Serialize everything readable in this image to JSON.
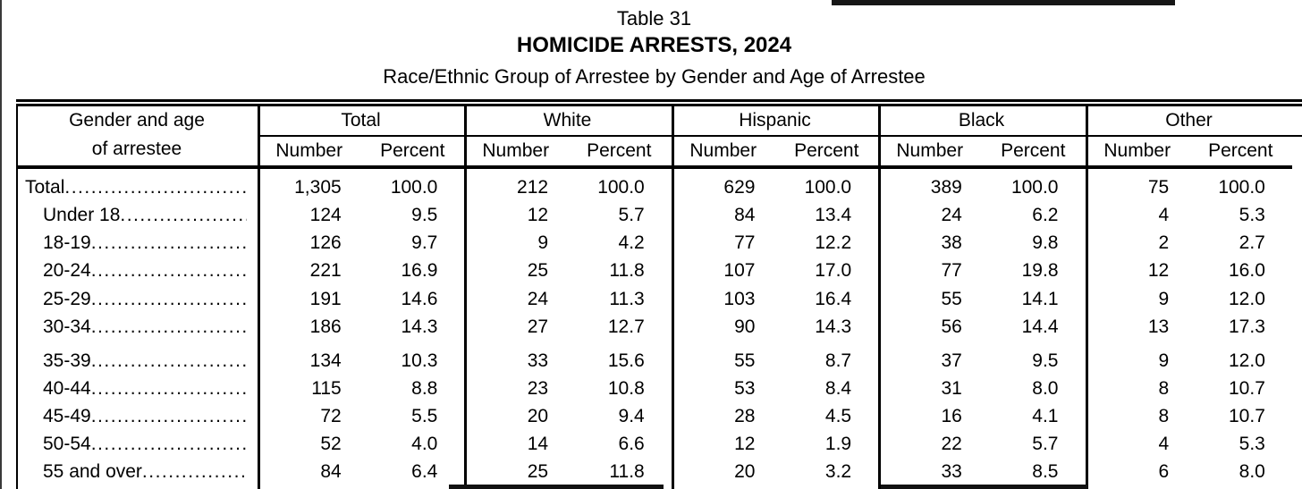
{
  "titles": {
    "table_number": "Table 31",
    "main": "HOMICIDE ARRESTS, 2024",
    "subtitle": "Race/Ethnic Group of Arrestee by Gender and Age of Arrestee"
  },
  "table": {
    "row_header": {
      "line1": "Gender and age",
      "line2": "of arrestee"
    },
    "groups": [
      "Total",
      "White",
      "Hispanic",
      "Black",
      "Other"
    ],
    "sub_headers": {
      "number": "Number",
      "percent": "Percent"
    },
    "leader": "........................................................",
    "rows": [
      {
        "label": "Total",
        "values": [
          "1,305",
          "100.0",
          "212",
          "100.0",
          "629",
          "100.0",
          "389",
          "100.0",
          "75",
          "100.0"
        ]
      },
      {
        "label": "Under 18",
        "values": [
          "124",
          "9.5",
          "12",
          "5.7",
          "84",
          "13.4",
          "24",
          "6.2",
          "4",
          "5.3"
        ]
      },
      {
        "label": "18-19",
        "values": [
          "126",
          "9.7",
          "9",
          "4.2",
          "77",
          "12.2",
          "38",
          "9.8",
          "2",
          "2.7"
        ]
      },
      {
        "label": "20-24",
        "values": [
          "221",
          "16.9",
          "25",
          "11.8",
          "107",
          "17.0",
          "77",
          "19.8",
          "12",
          "16.0"
        ]
      },
      {
        "label": "25-29",
        "values": [
          "191",
          "14.6",
          "24",
          "11.3",
          "103",
          "16.4",
          "55",
          "14.1",
          "9",
          "12.0"
        ]
      },
      {
        "label": "30-34",
        "values": [
          "186",
          "14.3",
          "27",
          "12.7",
          "90",
          "14.3",
          "56",
          "14.4",
          "13",
          "17.3"
        ]
      },
      {
        "label": "35-39",
        "values": [
          "134",
          "10.3",
          "33",
          "15.6",
          "55",
          "8.7",
          "37",
          "9.5",
          "9",
          "12.0"
        ]
      },
      {
        "label": "40-44",
        "values": [
          "115",
          "8.8",
          "23",
          "10.8",
          "53",
          "8.4",
          "31",
          "8.0",
          "8",
          "10.7"
        ]
      },
      {
        "label": "45-49",
        "values": [
          "72",
          "5.5",
          "20",
          "9.4",
          "28",
          "4.5",
          "16",
          "4.1",
          "8",
          "10.7"
        ]
      },
      {
        "label": "50-54",
        "values": [
          "52",
          "4.0",
          "14",
          "6.6",
          "12",
          "1.9",
          "22",
          "5.7",
          "4",
          "5.3"
        ]
      },
      {
        "label": "55 and over",
        "values": [
          "84",
          "6.4",
          "25",
          "11.8",
          "20",
          "3.2",
          "33",
          "8.5",
          "6",
          "8.0"
        ]
      }
    ]
  },
  "colors": {
    "ink": "#000000",
    "paper": "#ffffff"
  }
}
